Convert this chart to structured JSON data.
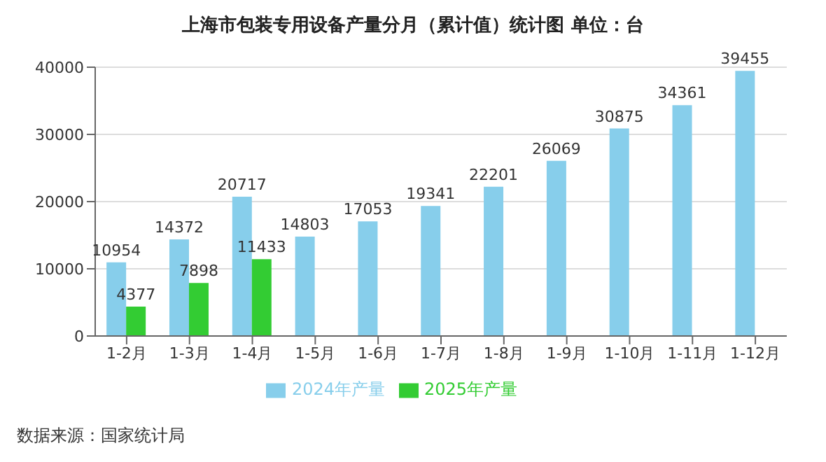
{
  "chart_data": {
    "type": "bar",
    "title": "上海市包装专用设备产量分月（累计值）统计图 单位：台",
    "categories": [
      "1-2月",
      "1-3月",
      "1-4月",
      "1-5月",
      "1-6月",
      "1-7月",
      "1-8月",
      "1-9月",
      "1-10月",
      "1-11月",
      "1-12月"
    ],
    "series": [
      {
        "name": "2024年产量",
        "color": "#87ceeb",
        "values": [
          10954,
          14372,
          20717,
          14803,
          17053,
          19341,
          22201,
          26069,
          30875,
          34361,
          39455
        ]
      },
      {
        "name": "2025年产量",
        "color": "#33cc33",
        "values": [
          4377,
          7898,
          11433,
          null,
          null,
          null,
          null,
          null,
          null,
          null,
          null
        ]
      }
    ],
    "ylim": [
      0,
      40000
    ],
    "yticks": [
      0,
      10000,
      20000,
      30000,
      40000
    ],
    "grid": "y",
    "legend": "bottom",
    "data_labels": true,
    "annotations": [
      "数据来源：国家统计局"
    ]
  }
}
